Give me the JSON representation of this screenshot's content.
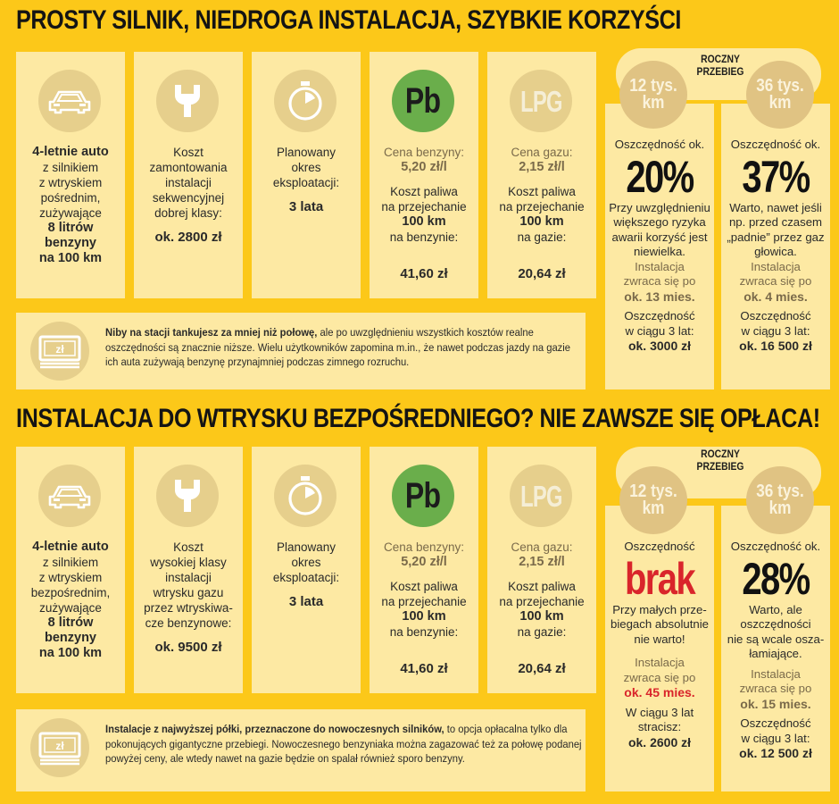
{
  "sections": [
    {
      "heading": "PROSTY SILNIK, NIEDROGA INSTALACJA, SZYBKIE KORZYŚCI",
      "car": {
        "icon": "car-icon",
        "lines": [
          "4-letnie auto",
          "z silnikiem",
          "z wtryskiem",
          "pośrednim,",
          "zużywające",
          "8 litrów",
          "benzyny",
          "na 100 km"
        ]
      },
      "install": {
        "icon": "wrench-icon",
        "lines": [
          "Koszt",
          "zamontowania",
          "instalacji",
          "sekwencyjnej",
          "dobrej klasy:"
        ],
        "value": "ok. 2800 zł"
      },
      "period": {
        "icon": "stopwatch-icon",
        "lines": [
          "Planowany",
          "okres",
          "eksploatacji:"
        ],
        "value": "3 lata"
      },
      "petrol": {
        "badge": "Pb",
        "price_label": "Cena benzyny:",
        "price_value": "5,20 zł/l",
        "lines": [
          "Koszt paliwa",
          "na przejechanie"
        ],
        "distance": "100 km",
        "fuel": "na benzynie:",
        "value": "41,60 zł"
      },
      "lpg": {
        "badge": "LPG",
        "price_label": "Cena gazu:",
        "price_value": "2,15 zł/l",
        "lines": [
          "Koszt paliwa",
          "na przejechanie"
        ],
        "distance": "100 km",
        "fuel": "na gazie:",
        "value": "20,64 zł"
      },
      "note": {
        "icon": "money-icon",
        "strong": "Niby na stacji tankujesz za mniej niż połowę,",
        "rest": " ale po uwzględnieniu wszystkich kosztów realne oszczędności są znacznie niższe. Wielu użytkowników zapomina m.in., że nawet podczas jazdy na gazie ich auta zużywają benzynę przynajmniej podczas zimnego rozruchu."
      },
      "mileage_label": [
        "ROCZNY",
        "PRZEBIEG"
      ],
      "km": [
        {
          "badge": [
            "12 tys.",
            "km"
          ],
          "intro": "Oszczędność ok.",
          "pct": "20%",
          "desc": [
            "Przy uwzględnieniu",
            "większego ryzyka",
            "awarii korzyść jest",
            "niewielka."
          ],
          "payback_lines": [
            "Instalacja",
            "zwraca się po"
          ],
          "payback_value": "ok. 13 mies.",
          "savings_lines": [
            "Oszczędność",
            "w ciągu 3 lat:"
          ],
          "savings_value": "ok. 3000 zł"
        },
        {
          "badge": [
            "36 tys.",
            "km"
          ],
          "intro": "Oszczędność ok.",
          "pct": "37%",
          "desc": [
            "Warto, nawet jeśli",
            "np. przed czasem",
            "„padnie” przez gaz",
            "głowica."
          ],
          "payback_lines": [
            "Instalacja",
            "zwraca się po"
          ],
          "payback_value": "ok. 4 mies.",
          "savings_lines": [
            "Oszczędność",
            "w ciągu 3 lat:"
          ],
          "savings_value": "ok. 16 500 zł"
        }
      ]
    },
    {
      "heading": "INSTALACJA DO WTRYSKU BEZPOŚREDNIEGO? NIE ZAWSZE SIĘ OPŁACA!",
      "car": {
        "icon": "car-icon",
        "lines": [
          "4-letnie auto",
          "z silnikiem",
          "z wtryskiem",
          "bezpośrednim,",
          "zużywające",
          "8 litrów",
          "benzyny",
          "na 100 km"
        ]
      },
      "install": {
        "icon": "wrench-icon",
        "lines": [
          "Koszt",
          "wysokiej klasy",
          "instalacji",
          "wtrysku gazu",
          "przez wtryskiwa-",
          "cze benzynowe:"
        ],
        "value": "ok. 9500 zł"
      },
      "period": {
        "icon": "stopwatch-icon",
        "lines": [
          "Planowany",
          "okres",
          "eksploatacji:"
        ],
        "value": "3 lata"
      },
      "petrol": {
        "badge": "Pb",
        "price_label": "Cena benzyny:",
        "price_value": "5,20 zł/l",
        "lines": [
          "Koszt paliwa",
          "na przejechanie"
        ],
        "distance": "100 km",
        "fuel": "na benzynie:",
        "value": "41,60 zł"
      },
      "lpg": {
        "badge": "LPG",
        "price_label": "Cena gazu:",
        "price_value": "2,15 zł/l",
        "lines": [
          "Koszt paliwa",
          "na przejechanie"
        ],
        "distance": "100 km",
        "fuel": "na gazie:",
        "value": "20,64 zł"
      },
      "note": {
        "icon": "money-icon",
        "strong": "Instalacje z najwyższej półki, przeznaczone do nowoczesnych silników,",
        "rest": " to opcja opłacalna tylko dla pokonujących gigantyczne przebiegi. Nowoczesnego benzyniaka można zagazować też za połowę podanej powyżej ceny, ale wtedy nawet na gazie będzie on spalał również sporo benzyny."
      },
      "mileage_label": [
        "ROCZNY",
        "PRZEBIEG"
      ],
      "km": [
        {
          "badge": [
            "12 tys.",
            "km"
          ],
          "intro": "Oszczędność",
          "pct": "brak",
          "desc": [
            "Przy małych prze-",
            "biegach absolutnie",
            "nie warto!"
          ],
          "payback_lines": [
            "Instalacja",
            "zwraca się po"
          ],
          "payback_value": "ok. 45 mies.",
          "savings_lines": [
            "W ciągu 3 lat",
            "stracisz:"
          ],
          "savings_value": "ok. 2600 zł"
        },
        {
          "badge": [
            "36 tys.",
            "km"
          ],
          "intro": "Oszczędność ok.",
          "pct": "28%",
          "desc": [
            "Warto, ale",
            "oszczędności",
            "nie są wcale osza-",
            "łamiające."
          ],
          "payback_lines": [
            "Instalacja",
            "zwraca się po"
          ],
          "payback_value": "ok. 15 mies.",
          "savings_lines": [
            "Oszczędność",
            "w ciągu 3 lat:"
          ],
          "savings_value": "ok. 12 500 zł"
        }
      ]
    }
  ],
  "colors": {
    "background": "#fcc819",
    "card": "#fde9a3",
    "icon_circle": "#e6cf8c",
    "pb_green": "#6aae4b",
    "highlight_red": "#d9252b"
  }
}
